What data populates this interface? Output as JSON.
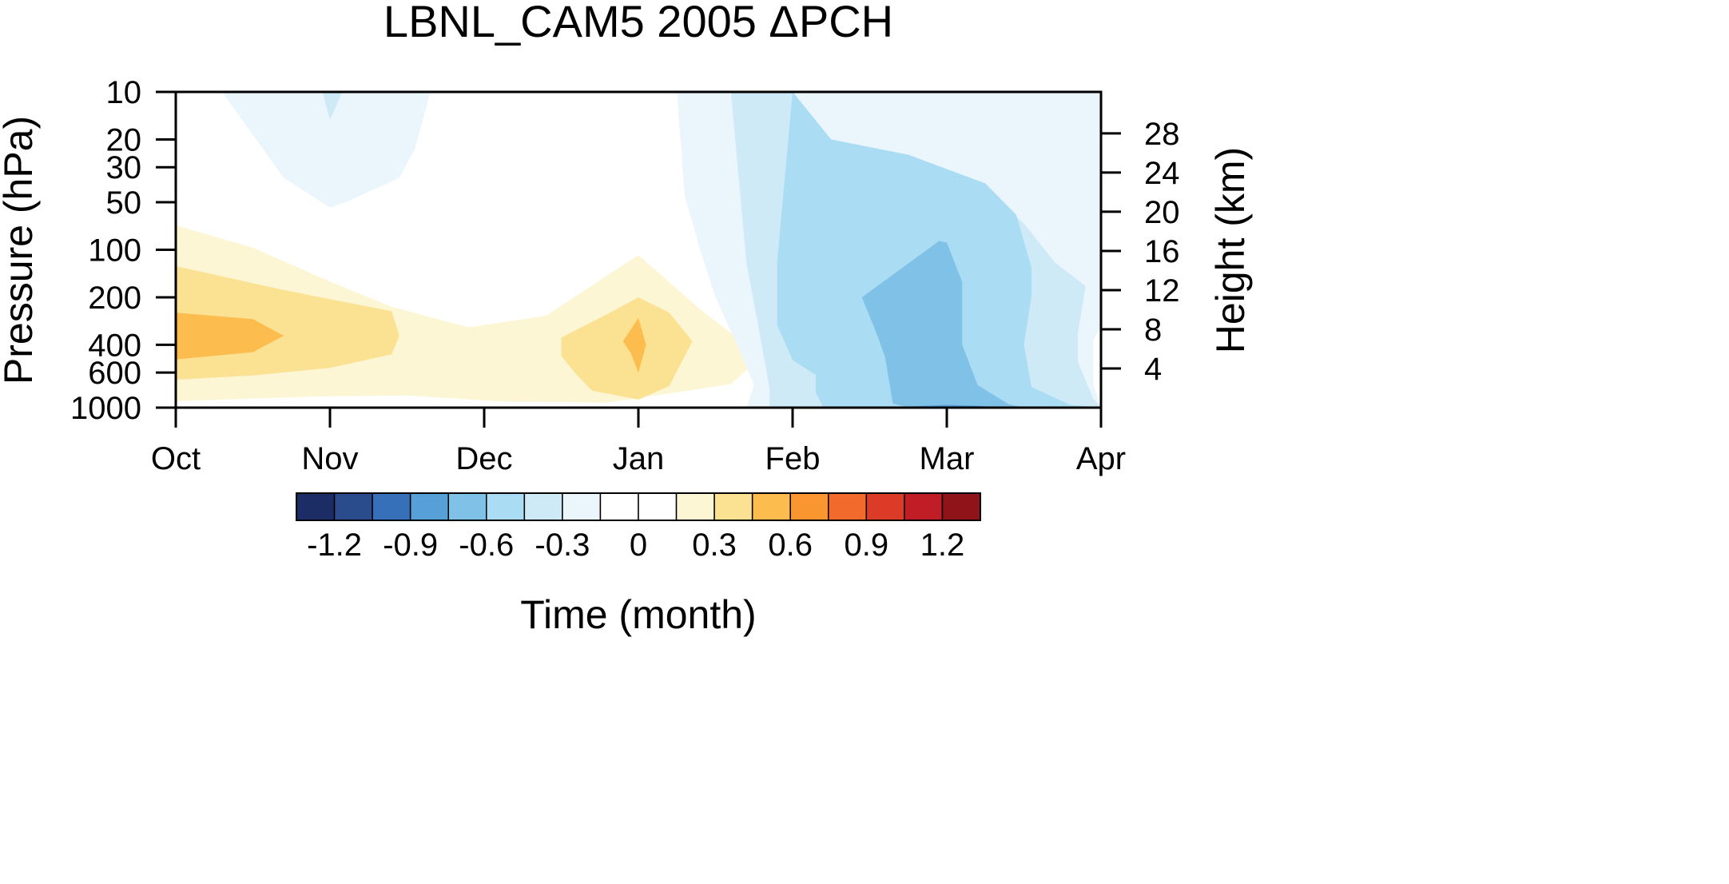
{
  "chart_data": {
    "type": "heatmap",
    "title": "LBNL_CAM5 2005 ΔPCH",
    "xlabel": "Time (month)",
    "ylabel": "Pressure (hPa)",
    "ylabel_right": "Height (km)",
    "x_ticks": [
      "Oct",
      "Nov",
      "Dec",
      "Jan",
      "Feb",
      "Mar",
      "Apr"
    ],
    "y_scale": "log",
    "y_range": [
      1000,
      10
    ],
    "y_ticks": [
      "10",
      "20",
      "30",
      "50",
      "100",
      "200",
      "400",
      "600",
      "1000"
    ],
    "y2_ticks": [
      "28",
      "24",
      "20",
      "16",
      "12",
      "8",
      "4"
    ],
    "grid": false,
    "colorbar": {
      "orientation": "horizontal",
      "position": "bottom",
      "levels": [
        -1.35,
        -1.2,
        -1.05,
        -0.9,
        -0.75,
        -0.6,
        -0.45,
        -0.3,
        -0.15,
        0,
        0.15,
        0.3,
        0.45,
        0.6,
        0.75,
        0.9,
        1.05,
        1.2,
        1.35
      ],
      "labels": [
        "-1.2",
        "-0.9",
        "-0.6",
        "-0.3",
        "0",
        "0.3",
        "0.6",
        "0.9",
        "1.2"
      ],
      "colors": [
        "#1c2c65",
        "#2a4b8c",
        "#3570b8",
        "#57a0d7",
        "#80c1e7",
        "#aadcf3",
        "#cfeaf7",
        "#eaf6fc",
        "#ffffff",
        "#ffffff",
        "#fdf6d4",
        "#fbe293",
        "#fdbc4e",
        "#f9962f",
        "#f26a2c",
        "#dc3b28",
        "#c11d26",
        "#8f1419"
      ]
    },
    "contours": [
      {
        "level": 0.15,
        "color": "#fdf6d4",
        "points": [
          [
            0,
            70
          ],
          [
            0.5,
            97
          ],
          [
            1,
            159
          ],
          [
            1.4,
            230
          ],
          [
            1.9,
            310
          ],
          [
            2.4,
            262
          ],
          [
            3,
            108
          ],
          [
            3.4,
            238
          ],
          [
            3.8,
            476
          ],
          [
            3.6,
            710
          ],
          [
            2.8,
            930
          ],
          [
            2.1,
            912
          ],
          [
            1.5,
            838
          ],
          [
            0.9,
            850
          ],
          [
            0,
            910
          ]
        ]
      },
      {
        "level": 0.3,
        "color": "#fbe293",
        "points": [
          [
            0,
            127
          ],
          [
            0.7,
            180
          ],
          [
            1.4,
            245
          ],
          [
            1.45,
            350
          ],
          [
            1.4,
            460
          ],
          [
            1,
            560
          ],
          [
            0.5,
            625
          ],
          [
            0,
            665
          ]
        ]
      },
      {
        "level": 0.3,
        "color": "#fbe293",
        "points": [
          [
            2.5,
            360
          ],
          [
            2.8,
            255
          ],
          [
            3,
            200
          ],
          [
            3.2,
            250
          ],
          [
            3.35,
            380
          ],
          [
            3.2,
            730
          ],
          [
            3,
            890
          ],
          [
            2.7,
            780
          ],
          [
            2.6,
            620
          ],
          [
            2.5,
            470
          ]
        ]
      },
      {
        "level": 0.45,
        "color": "#fdbc4e",
        "points": [
          [
            0,
            250
          ],
          [
            0.5,
            275
          ],
          [
            0.7,
            350
          ],
          [
            0.5,
            445
          ],
          [
            0,
            495
          ]
        ]
      },
      {
        "level": 0.45,
        "color": "#fdbc4e",
        "points": [
          [
            2.9,
            380
          ],
          [
            3,
            270
          ],
          [
            3.05,
            400
          ],
          [
            3,
            600
          ],
          [
            2.95,
            450
          ]
        ]
      },
      {
        "level": -0.15,
        "color": "#eaf6fc",
        "points": [
          [
            0.35,
            10
          ],
          [
            1.65,
            10
          ],
          [
            1.55,
            23
          ],
          [
            1.45,
            35
          ],
          [
            1.1,
            50
          ],
          [
            1,
            54
          ],
          [
            0.7,
            35
          ],
          [
            0.3,
            10
          ]
        ]
      },
      {
        "level": -0.15,
        "color": "#eaf6fc",
        "points": [
          [
            3.25,
            10
          ],
          [
            6,
            10
          ],
          [
            6,
            310
          ],
          [
            5.95,
            370
          ],
          [
            5.95,
            720
          ],
          [
            6,
            1000
          ],
          [
            3.7,
            1000
          ],
          [
            3.75,
            720
          ],
          [
            3.65,
            420
          ],
          [
            3.5,
            200
          ],
          [
            3.4,
            100
          ],
          [
            3.3,
            45
          ]
        ]
      },
      {
        "level": -0.15,
        "color": "#eaf6fc",
        "points": [
          [
            1.7,
            1000
          ],
          [
            1.95,
            985
          ],
          [
            2.2,
            1000
          ]
        ]
      },
      {
        "level": -0.3,
        "color": "#cfeaf7",
        "points": [
          [
            3.6,
            10
          ],
          [
            4,
            10
          ],
          [
            4.25,
            20
          ],
          [
            4.7,
            25
          ],
          [
            5.2,
            38
          ],
          [
            5.5,
            68
          ],
          [
            5.7,
            120
          ],
          [
            5.9,
            170
          ],
          [
            5.85,
            340
          ],
          [
            5.85,
            510
          ],
          [
            5.95,
            880
          ],
          [
            6,
            1000
          ],
          [
            3.85,
            1000
          ],
          [
            3.85,
            760
          ],
          [
            3.8,
            400
          ],
          [
            3.7,
            120
          ]
        ]
      },
      {
        "level": -0.3,
        "color": "#cfeaf7",
        "points": [
          [
            0.95,
            10
          ],
          [
            1.08,
            10
          ],
          [
            1,
            15
          ]
        ]
      },
      {
        "level": -0.45,
        "color": "#aadcf3",
        "points": [
          [
            4,
            10
          ],
          [
            4.25,
            20
          ],
          [
            4.75,
            25
          ],
          [
            5.25,
            38
          ],
          [
            5.45,
            60
          ],
          [
            5.55,
            130
          ],
          [
            5.55,
            195
          ],
          [
            5.5,
            400
          ],
          [
            5.55,
            740
          ],
          [
            5.8,
            960
          ],
          [
            6,
            1000
          ],
          [
            4.2,
            1000
          ],
          [
            4.15,
            800
          ],
          [
            4.15,
            620
          ],
          [
            4,
            500
          ],
          [
            3.9,
            300
          ],
          [
            3.9,
            120
          ]
        ]
      },
      {
        "level": -0.6,
        "color": "#80c1e7",
        "points": [
          [
            4.45,
            200
          ],
          [
            4.95,
            88
          ],
          [
            5,
            90
          ],
          [
            5.1,
            160
          ],
          [
            5.1,
            400
          ],
          [
            5.2,
            720
          ],
          [
            5.4,
            950
          ],
          [
            5.5,
            1000
          ],
          [
            4.75,
            1000
          ],
          [
            4.65,
            940
          ],
          [
            4.6,
            480
          ],
          [
            4.55,
            350
          ]
        ]
      },
      {
        "level": -0.75,
        "color": "#57a0d7",
        "points": [
          [
            4.6,
            1000
          ],
          [
            5,
            960
          ],
          [
            5.2,
            975
          ],
          [
            5.4,
            1000
          ]
        ]
      }
    ]
  }
}
